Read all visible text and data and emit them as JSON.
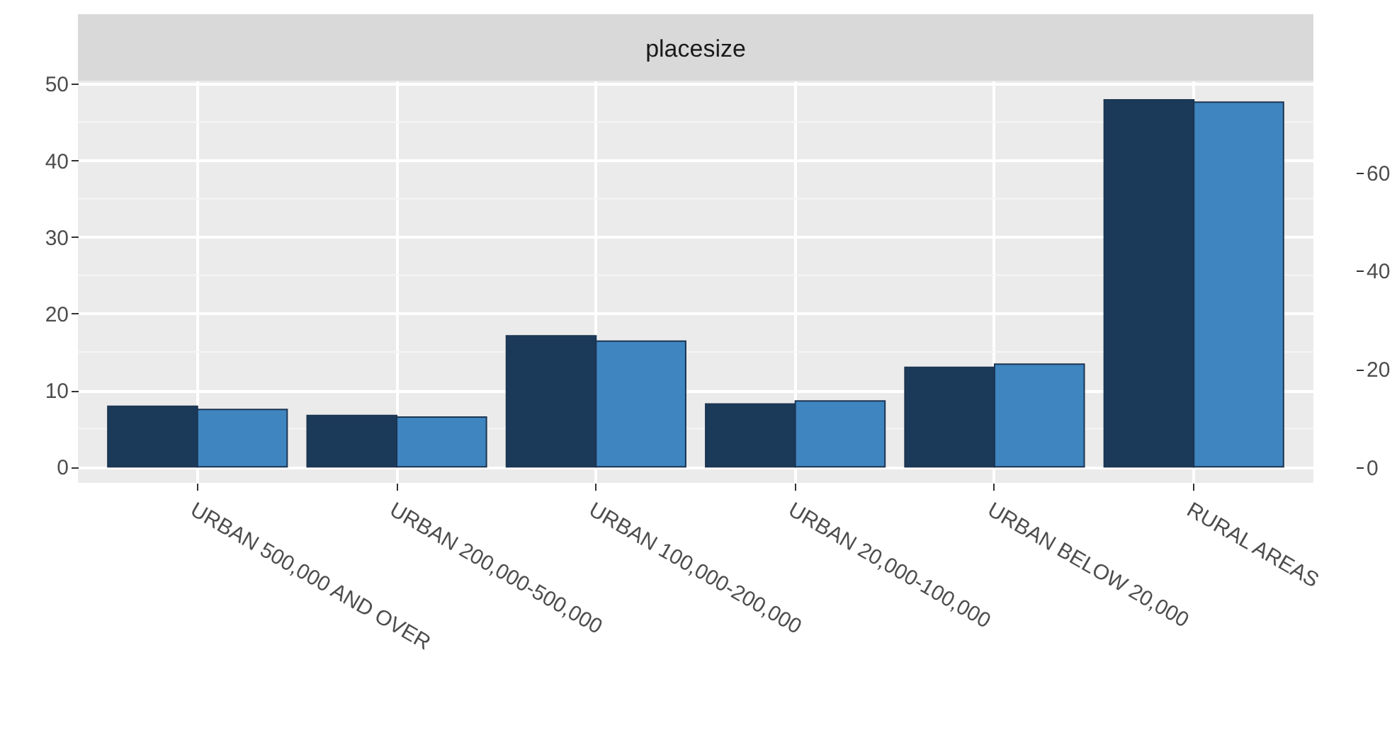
{
  "chart_data": {
    "type": "bar",
    "title": "placesize",
    "categories": [
      "URBAN 500,000 AND OVER",
      "URBAN 200,000-500,000",
      "URBAN 100,000-200,000",
      "URBAN 20,000-100,000",
      "URBAN BELOW 20,000",
      "RURAL AREAS"
    ],
    "series": [
      {
        "color": "#1b3a5a",
        "values": [
          7.9,
          6.7,
          17.1,
          8.2,
          13.0,
          47.9
        ]
      },
      {
        "color": "#3f85c0",
        "values": [
          7.5,
          6.5,
          16.4,
          8.6,
          13.4,
          47.6
        ]
      }
    ],
    "ylim": [
      -2.1,
      50.4
    ],
    "yticks": [
      0,
      10,
      20,
      30,
      40,
      50
    ],
    "y2lim": [
      -3.2,
      78.7
    ],
    "y2ticks": [
      0,
      20,
      40,
      60
    ],
    "grid": true
  }
}
